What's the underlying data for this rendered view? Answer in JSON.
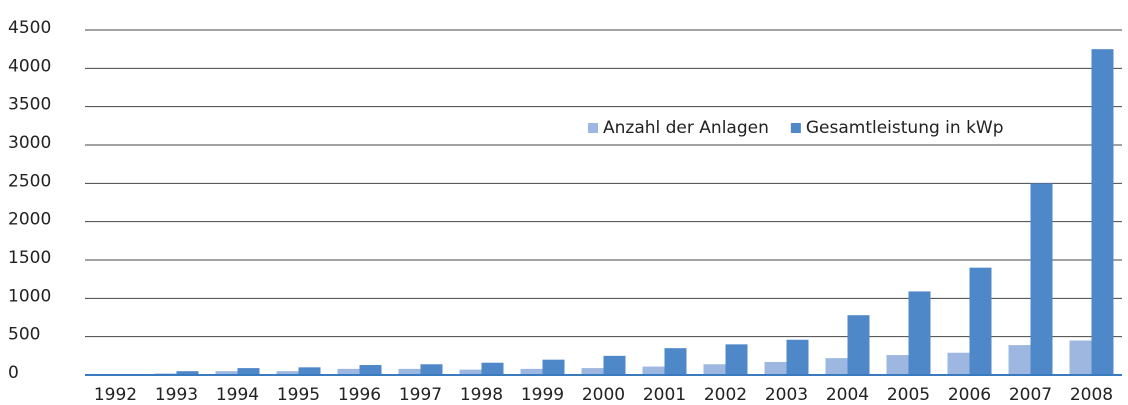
{
  "chart_data": {
    "type": "bar",
    "categories": [
      "1992",
      "1993",
      "1994",
      "1995",
      "1996",
      "1997",
      "1998",
      "1999",
      "2000",
      "2001",
      "2002",
      "2003",
      "2004",
      "2005",
      "2006",
      "2007",
      "2008"
    ],
    "series": [
      {
        "name": "Anzahl der Anlagen",
        "color": "#9db7e1",
        "values": [
          5,
          20,
          50,
          50,
          80,
          80,
          70,
          80,
          90,
          110,
          140,
          170,
          220,
          260,
          290,
          390,
          450
        ]
      },
      {
        "name": "Gesamtleistung in kWp",
        "color": "#4f88c9",
        "values": [
          10,
          50,
          90,
          100,
          130,
          140,
          160,
          200,
          250,
          350,
          400,
          460,
          780,
          1090,
          1400,
          2500,
          4250
        ]
      }
    ],
    "ylim": [
      0,
      4500
    ],
    "yticks": [
      0,
      500,
      1000,
      1500,
      2000,
      2500,
      3000,
      3500,
      4000,
      4500
    ],
    "grid": true,
    "legend": "upper right"
  }
}
